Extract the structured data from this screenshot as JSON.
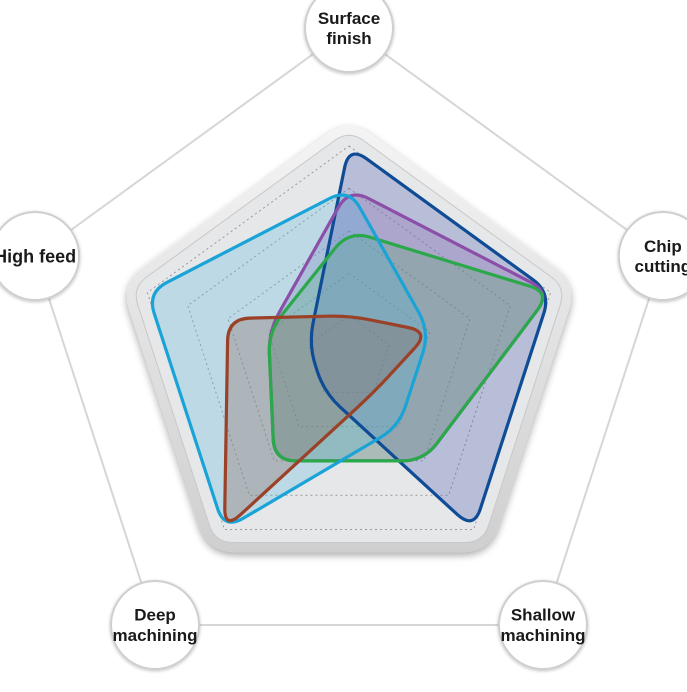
{
  "chart_data": {
    "type": "radar",
    "axes": [
      {
        "lines": [
          "Surface",
          "finish"
        ]
      },
      {
        "lines": [
          "Chip",
          "cutting"
        ]
      },
      {
        "lines": [
          "Shallow",
          "machining"
        ]
      },
      {
        "lines": [
          "Deep",
          "machining"
        ]
      },
      {
        "lines": [
          "High feed"
        ]
      }
    ],
    "range": [
      0,
      5
    ],
    "levels": 5,
    "series": [
      {
        "color": "#0f4c96",
        "fill": "#3f56a8",
        "values": [
          5,
          5,
          5,
          1,
          1
        ]
      },
      {
        "color": "#8b4fa8",
        "fill": "#8e68b2",
        "values": [
          4,
          5,
          3,
          3,
          2
        ]
      },
      {
        "color": "#2aa84a",
        "fill": "#53a860",
        "values": [
          3,
          5,
          3,
          3,
          2
        ]
      },
      {
        "color": "#1aa3d6",
        "fill": "#4fb7dc",
        "values": [
          4,
          2,
          2,
          5,
          5
        ]
      },
      {
        "color": "#9a4128",
        "fill": "#8a5a4a",
        "values": [
          1,
          2,
          1,
          5,
          3
        ]
      }
    ]
  }
}
